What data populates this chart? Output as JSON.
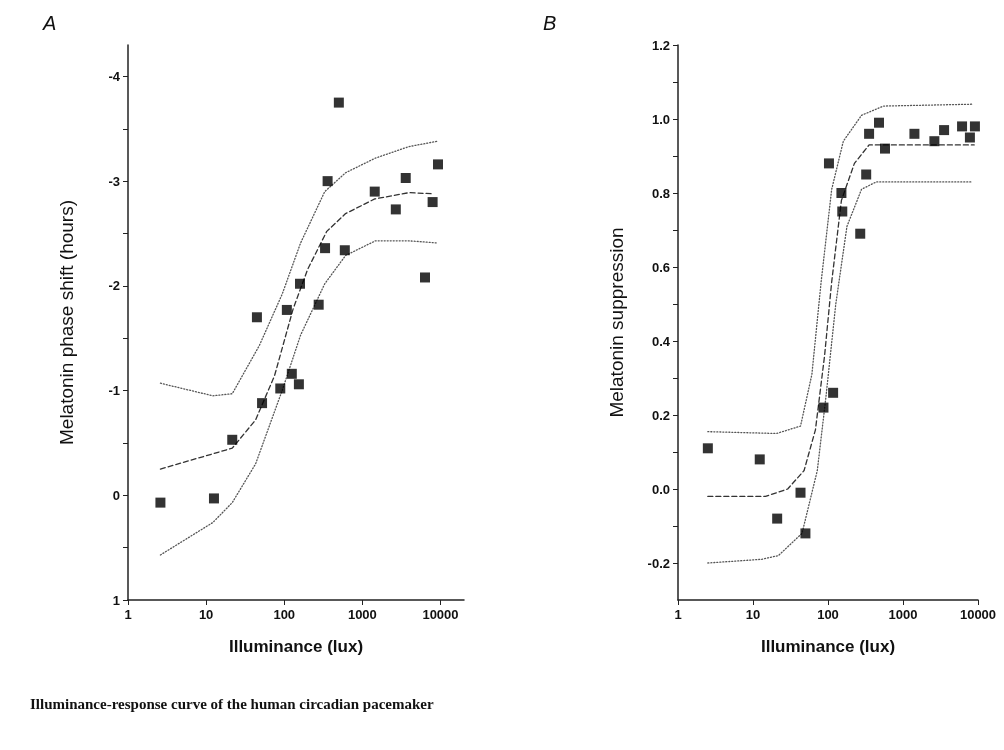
{
  "chart_data": [
    {
      "type": "scatter",
      "title": "A",
      "xlabel": "Illuminance (lux)",
      "ylabel": "Melatonin phase shift (hours)",
      "log": "x",
      "xlim": [
        1,
        20000
      ],
      "xticks": [
        1,
        10,
        100,
        1000,
        10000
      ],
      "ylim": [
        1,
        -4.3
      ],
      "yticks": [
        -4,
        {
          "value": -3.5,
          "label": null
        },
        -3,
        {
          "value": -2.5,
          "label": null
        },
        -2,
        {
          "value": -1.5,
          "label": null
        },
        -1,
        {
          "value": -0.5,
          "label": null
        },
        0,
        {
          "value": 0.5,
          "label": null
        },
        1
      ],
      "annotations": [
        "Illuminance-response curve of the human circadian pacemaker"
      ],
      "series": [
        {
          "type": "scatter",
          "marker": "square",
          "color": "#000000",
          "x": [
            2.6,
            12.6,
            21.6,
            44.7,
            52,
            89,
            108,
            125,
            154,
            159,
            276,
            333,
            359,
            500,
            596,
            1440,
            2680,
            3590,
            6340,
            7930,
            9300
          ],
          "values": [
            0.07,
            0.03,
            -0.53,
            -1.7,
            -0.88,
            -1.02,
            -1.77,
            -1.16,
            -1.06,
            -2.02,
            -1.82,
            -2.36,
            -3.0,
            -3.75,
            -2.34,
            -2.9,
            -2.73,
            -3.03,
            -2.08,
            -2.8,
            -3.16
          ]
        },
        {
          "type": "line",
          "line_style": "dashed",
          "color": "#333333",
          "x": [
            2.6,
            21.6,
            43,
            75,
            130,
            200,
            350,
            610,
            1440,
            3950,
            7700
          ],
          "values": [
            -0.25,
            -0.45,
            -0.72,
            -1.14,
            -1.78,
            -2.16,
            -2.52,
            -2.69,
            -2.83,
            -2.89,
            -2.88
          ]
        },
        {
          "type": "line",
          "line_style": "dotted",
          "color": "#555555",
          "x": [
            2.6,
            12.2,
            21.6,
            48,
            94,
            162,
            330,
            610,
            1470,
            3950,
            9000
          ],
          "values": [
            -1.07,
            -0.95,
            -0.97,
            -1.43,
            -1.92,
            -2.41,
            -2.9,
            -3.08,
            -3.22,
            -3.33,
            -3.38
          ]
        },
        {
          "type": "line",
          "line_style": "dotted",
          "color": "#555555",
          "x": [
            2.6,
            12.2,
            21.6,
            43,
            94,
            162,
            330,
            610,
            1470,
            3950,
            9000
          ],
          "values": [
            0.57,
            0.26,
            0.07,
            -0.3,
            -1.0,
            -1.53,
            -2.02,
            -2.29,
            -2.43,
            -2.43,
            -2.41
          ]
        }
      ]
    },
    {
      "type": "scatter",
      "title": "B",
      "xlabel": "Illuminance (lux)",
      "ylabel": "Melatonin suppression",
      "log": "x",
      "xlim": [
        1,
        10000
      ],
      "xticks": [
        1,
        10,
        100,
        1000,
        10000
      ],
      "ylim": [
        -0.3,
        1.2
      ],
      "yticks": [
        {
          "value": -0.2,
          "label": "-0.2"
        },
        {
          "value": -0.1,
          "label": null
        },
        {
          "value": 0,
          "label": "0.0"
        },
        {
          "value": 0.1,
          "label": null
        },
        {
          "value": 0.2,
          "label": "0.2"
        },
        {
          "value": 0.3,
          "label": null
        },
        {
          "value": 0.4,
          "label": "0.4"
        },
        {
          "value": 0.5,
          "label": null
        },
        {
          "value": 0.6,
          "label": "0.6"
        },
        {
          "value": 0.7,
          "label": null
        },
        {
          "value": 0.8,
          "label": "0.8"
        },
        {
          "value": 0.9,
          "label": null
        },
        {
          "value": 1,
          "label": "1.0"
        },
        {
          "value": 1.1,
          "label": null
        },
        {
          "value": 1.2,
          "label": "1.2"
        }
      ],
      "series": [
        {
          "type": "scatter",
          "marker": "square",
          "color": "#000000",
          "x": [
            2.5,
            12.3,
            21,
            43,
            50,
            87,
            103,
            117,
            151,
            155,
            269,
            323,
            353,
            479,
            575,
            1420,
            2620,
            3530,
            6130,
            7800,
            9100
          ],
          "values": [
            0.11,
            0.08,
            -0.08,
            -0.01,
            -0.12,
            0.22,
            0.88,
            0.26,
            0.8,
            0.75,
            0.69,
            0.85,
            0.96,
            0.99,
            0.92,
            0.96,
            0.94,
            0.97,
            0.98,
            0.95,
            0.98
          ]
        },
        {
          "type": "line",
          "line_style": "dashed",
          "color": "#333333",
          "x": [
            2.5,
            14.7,
            29,
            48,
            68,
            90,
            112,
            151,
            225,
            353,
            870,
            8900
          ],
          "values": [
            -0.02,
            -0.02,
            0.0,
            0.05,
            0.16,
            0.36,
            0.56,
            0.78,
            0.88,
            0.93,
            0.93,
            0.93
          ]
        },
        {
          "type": "line",
          "line_style": "dotted",
          "color": "#555555",
          "x": [
            2.5,
            20.6,
            43,
            61,
            81,
            112,
            160,
            280,
            550,
            8500
          ],
          "values": [
            0.155,
            0.15,
            0.17,
            0.31,
            0.56,
            0.81,
            0.94,
            1.01,
            1.035,
            1.04
          ]
        },
        {
          "type": "line",
          "line_style": "dotted",
          "color": "#555555",
          "x": [
            2.5,
            13,
            21.8,
            45,
            72,
            94,
            127,
            179,
            280,
            440,
            8500
          ],
          "values": [
            -0.2,
            -0.19,
            -0.18,
            -0.12,
            0.05,
            0.25,
            0.5,
            0.71,
            0.81,
            0.83,
            0.83
          ]
        }
      ]
    }
  ]
}
